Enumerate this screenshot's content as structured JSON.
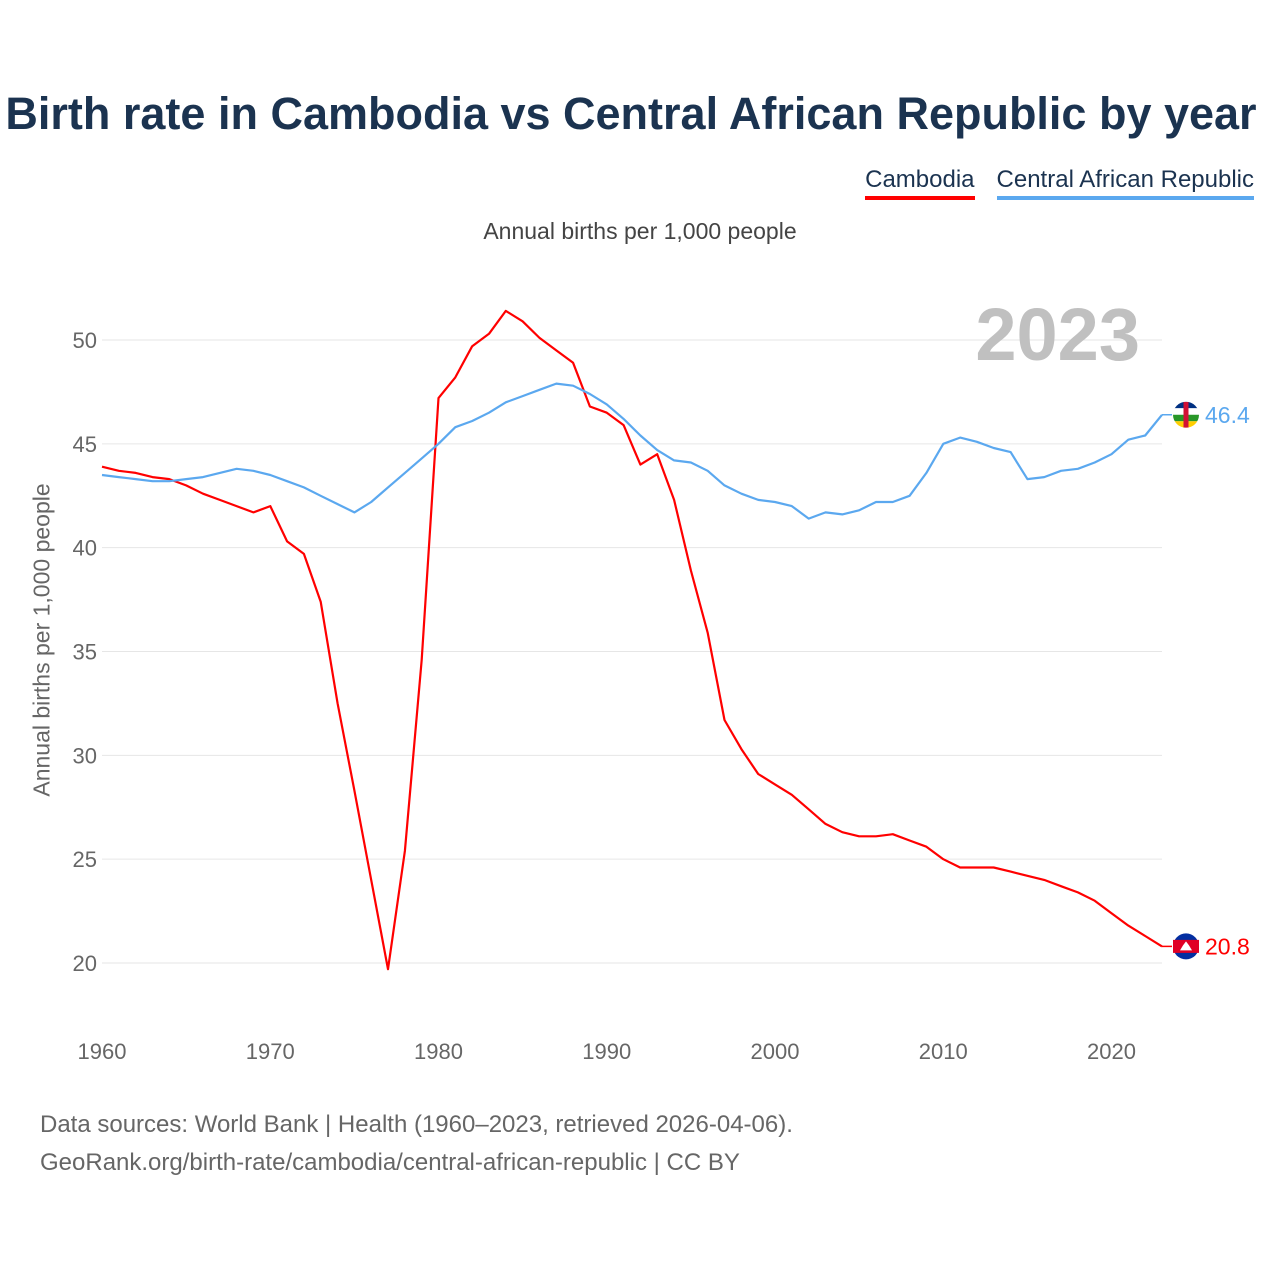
{
  "chart_data": {
    "type": "line",
    "title": "Birth rate in Cambodia vs Central African Republic by year",
    "subtitle": "Annual births per 1,000 people",
    "ylabel": "Annual births per 1,000 people",
    "xlabel": "",
    "year_label": "2023",
    "xlim": [
      1960,
      2023
    ],
    "ylim": [
      17.5,
      52.5
    ],
    "xticks": [
      1960,
      1970,
      1980,
      1990,
      2000,
      2010,
      2020
    ],
    "yticks": [
      20,
      25,
      30,
      35,
      40,
      45,
      50
    ],
    "grid": true,
    "legend_position": "top-right",
    "x_start": 1960,
    "series": [
      {
        "name": "Cambodia",
        "color": "#ff0000",
        "end_label": "20.8",
        "flag": "cambodia-flag",
        "values": [
          43.9,
          43.7,
          43.6,
          43.4,
          43.3,
          43.0,
          42.6,
          42.3,
          42.0,
          41.7,
          42.0,
          40.3,
          39.7,
          37.4,
          32.5,
          28.3,
          24.0,
          19.7,
          25.4,
          34.6,
          47.2,
          48.2,
          49.7,
          50.3,
          51.4,
          50.9,
          50.1,
          49.5,
          48.9,
          46.8,
          46.5,
          45.9,
          44.0,
          44.5,
          42.3,
          38.9,
          35.9,
          31.7,
          30.3,
          29.1,
          28.6,
          28.1,
          27.4,
          26.7,
          26.3,
          26.1,
          26.1,
          26.2,
          25.9,
          25.6,
          25.0,
          24.6,
          24.6,
          24.6,
          24.4,
          24.2,
          24.0,
          23.7,
          23.4,
          23.0,
          22.4,
          21.8,
          21.3,
          20.8
        ]
      },
      {
        "name": "Central African Republic",
        "color": "#5ba8ef",
        "end_label": "46.4",
        "flag": "central-african-republic-flag",
        "values": [
          43.5,
          43.4,
          43.3,
          43.2,
          43.2,
          43.3,
          43.4,
          43.6,
          43.8,
          43.7,
          43.5,
          43.2,
          42.9,
          42.5,
          42.1,
          41.7,
          42.2,
          42.9,
          43.6,
          44.3,
          45.0,
          45.8,
          46.1,
          46.5,
          47.0,
          47.3,
          47.6,
          47.9,
          47.8,
          47.4,
          46.9,
          46.2,
          45.4,
          44.7,
          44.2,
          44.1,
          43.7,
          43.0,
          42.6,
          42.3,
          42.2,
          42.0,
          41.4,
          41.7,
          41.6,
          41.8,
          42.2,
          42.2,
          42.5,
          43.6,
          45.0,
          45.3,
          45.1,
          44.8,
          44.6,
          43.3,
          43.4,
          43.7,
          43.8,
          44.1,
          44.5,
          45.2,
          45.4,
          46.4
        ]
      }
    ]
  },
  "footer": {
    "line1": "Data sources: World Bank | Health (1960–2023, retrieved 2026-04-06).",
    "line2": "GeoRank.org/birth-rate/cambodia/central-african-republic | CC BY"
  }
}
